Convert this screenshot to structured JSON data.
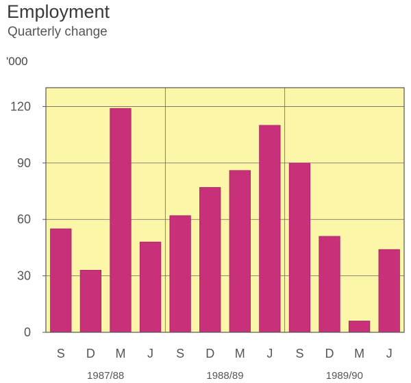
{
  "title": "Employment",
  "subtitle": "Quarterly change",
  "y_unit": "'000",
  "colors": {
    "plot_background": "#fbf6a8",
    "bar": "#c8307a",
    "bar_edge": "#a8245f",
    "axis": "#555555",
    "grid": "#666666"
  },
  "chart_data": {
    "type": "bar",
    "categories": [
      "S",
      "D",
      "M",
      "J",
      "S",
      "D",
      "M",
      "J",
      "S",
      "D",
      "M",
      "J"
    ],
    "groups": [
      {
        "label": "1987/88",
        "count": 4
      },
      {
        "label": "1988/89",
        "count": 4
      },
      {
        "label": "1989/90",
        "count": 4
      }
    ],
    "values": [
      55,
      33,
      119,
      48,
      62,
      77,
      86,
      110,
      90,
      51,
      6,
      44
    ],
    "ylim": [
      0,
      130
    ],
    "yticks": [
      0,
      30,
      60,
      90,
      120
    ],
    "ylabel": "'000",
    "grid": true
  }
}
